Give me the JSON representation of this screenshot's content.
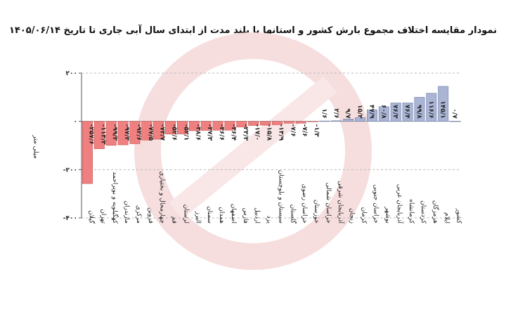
{
  "title": "نمودار مقایسه اختلاف مجموع بارش کشور و استانها با بلند مدت از ابتدای سال آبی جاری تا تاریخ ۱۴۰۵/۰۶/۱۴",
  "chart_data": {
    "type": "bar",
    "title": "نمودار مقایسه اختلاف مجموع بارش کشور و استانها با بلند مدت از ابتدای سال آبی جاری تا تاریخ ۱۴۰۵/۰۶/۱۴",
    "ylabel": "میلی متر",
    "xlabel": "",
    "ylim": [
      -400,
      200
    ],
    "yticks": [
      200,
      0,
      -200,
      -400
    ],
    "ytick_labels": [
      "۲۰۰",
      "۰",
      "-۲۰۰",
      "-۴۰۰"
    ],
    "grid": true,
    "colors": {
      "negative": "#f08080",
      "negative_stroke": "#c05050",
      "positive": "#aab4d4",
      "positive_stroke": "#6f7fa8"
    },
    "categories": [
      "گیلان",
      "تهران",
      "کهگیلویه و بویراحمد",
      "مازندران",
      "مرکزی",
      "قزوین",
      "چهارمحال و بختیاری",
      "قم",
      "لرستان",
      "البرز",
      "سمنان",
      "همدان",
      "اصفهان",
      "فارس",
      "اردبیل",
      "یزد",
      "سیستان و بلوچستان",
      "گلستان",
      "خراسان رضوی",
      "خوزستان",
      "خراسان شمالی",
      "آذربایجان شرقی",
      "زنجان",
      "کرمان",
      "خراسان جنوبی",
      "بوشهر",
      "آذربایجان غربی",
      "کرمانشاه",
      "کردستان",
      "هرمزگان",
      "ایلام",
      "کشور"
    ],
    "values": [
      -257.6,
      -113.3,
      -99.3,
      -97.3,
      -92.6,
      -77.5,
      -73.7,
      -52.6,
      -52.1,
      -38.6,
      -37.3,
      -36.6,
      -36.4,
      -23.3,
      -17.0,
      -15.8,
      -13.9,
      -7.6,
      -7.6,
      -1.3,
      1.6,
      2.6,
      9.7,
      15.3,
      47.9,
      60.8,
      76.3,
      76.4,
      99.8,
      116.6,
      145.1,
      0.7
    ],
    "value_labels": [
      "-۲۵۷/۶",
      "-۱۱۳/۳",
      "-۹۹/۳",
      "-۹۷/۳",
      "-۹۲/۶",
      "-۷۷/۵",
      "-۷۳/۷",
      "-۵۲/۶",
      "-۵۲/۱",
      "-۳۸/۶",
      "-۳۷/۳",
      "-۳۶/۶",
      "-۳۶/۴",
      "-۲۳/۳",
      "-۱۷/۰",
      "-۱۵/۸",
      "-۱۳/۹",
      "-۷/۶",
      "-۷/۶",
      "-۱/۳",
      "۱/۶",
      "۲/۶",
      "۹/۷",
      "۱۵/۳",
      "۴۷/۹",
      "۶۰/۸",
      "۷۶/۳",
      "۷۶/۴",
      "۹۹/۸",
      "۱۱۶/۶",
      "۱۴۵/۱",
      "۰/۷"
    ]
  }
}
